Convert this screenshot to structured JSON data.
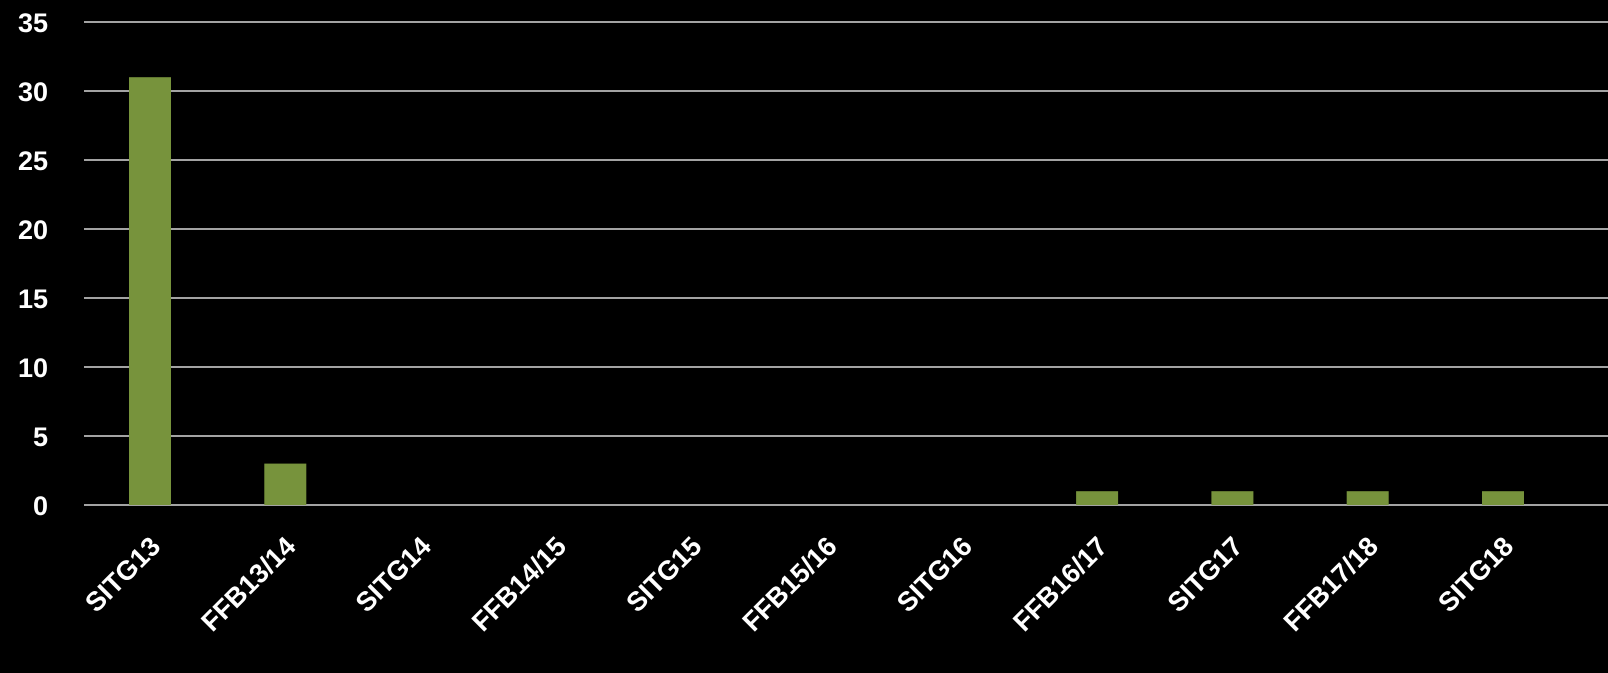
{
  "chart_data": {
    "type": "bar",
    "title": "",
    "xlabel": "",
    "ylabel": "",
    "categories": [
      "SITG13",
      "FFB13/14",
      "SITG14",
      "FFB14/15",
      "SITG15",
      "FFB15/16",
      "SITG16",
      "FFB16/17",
      "SITG17",
      "FFB17/18",
      "SITG18"
    ],
    "values": [
      31,
      3,
      0,
      0,
      0,
      0,
      0,
      1,
      1,
      1,
      1
    ],
    "ylim": [
      0,
      35
    ],
    "yticks": [
      0,
      5,
      10,
      15,
      20,
      25,
      30,
      35
    ],
    "grid": true,
    "legend": "none",
    "colors": {
      "background": "#000000",
      "bar": "#77933c",
      "grid": "#d9d9d9",
      "text": "#ffffff"
    }
  }
}
